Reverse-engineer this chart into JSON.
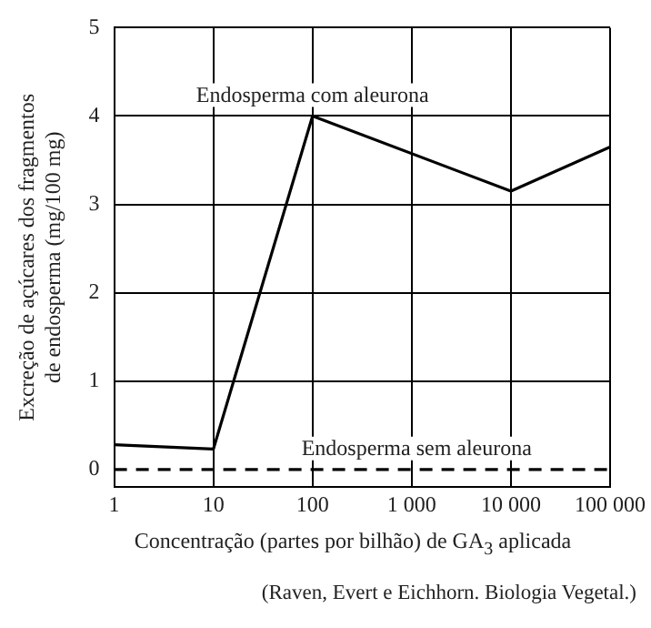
{
  "chart_data": {
    "type": "line",
    "xlabel": "Concentração (partes por bilhão) de GA$_{3}$ aplicada",
    "ylabel": "Excreção de açúcares dos fragmentos de endosperma (mg/100 mg)",
    "log": "x",
    "xlim": [
      1,
      100000
    ],
    "xticks": [
      1,
      10,
      100,
      {
        "value": 1000,
        "label": "1 000"
      },
      {
        "value": 10000,
        "label": "10 000"
      },
      {
        "value": 100000,
        "label": "100 000"
      }
    ],
    "ylim": [
      -0.2,
      5
    ],
    "yticks": [
      0,
      1,
      2,
      3,
      4,
      5
    ],
    "grid": true,
    "legend": false,
    "marker": "none",
    "series": [
      {
        "name": "Endosperma com aleurona",
        "color": "#000000",
        "x": [
          1,
          10,
          100,
          10000,
          100000
        ],
        "values": [
          0.28,
          0.23,
          4.0,
          3.15,
          3.65
        ],
        "line_style": "solid"
      },
      {
        "name": "Endosperma sem aleurona",
        "color": "#000000",
        "x": [
          1,
          100000
        ],
        "values": [
          0,
          0
        ],
        "line_style": "dashed"
      }
    ],
    "annotations": [
      "(Raven, Evert e Eichhorn. Biologia Vegetal.)"
    ]
  }
}
